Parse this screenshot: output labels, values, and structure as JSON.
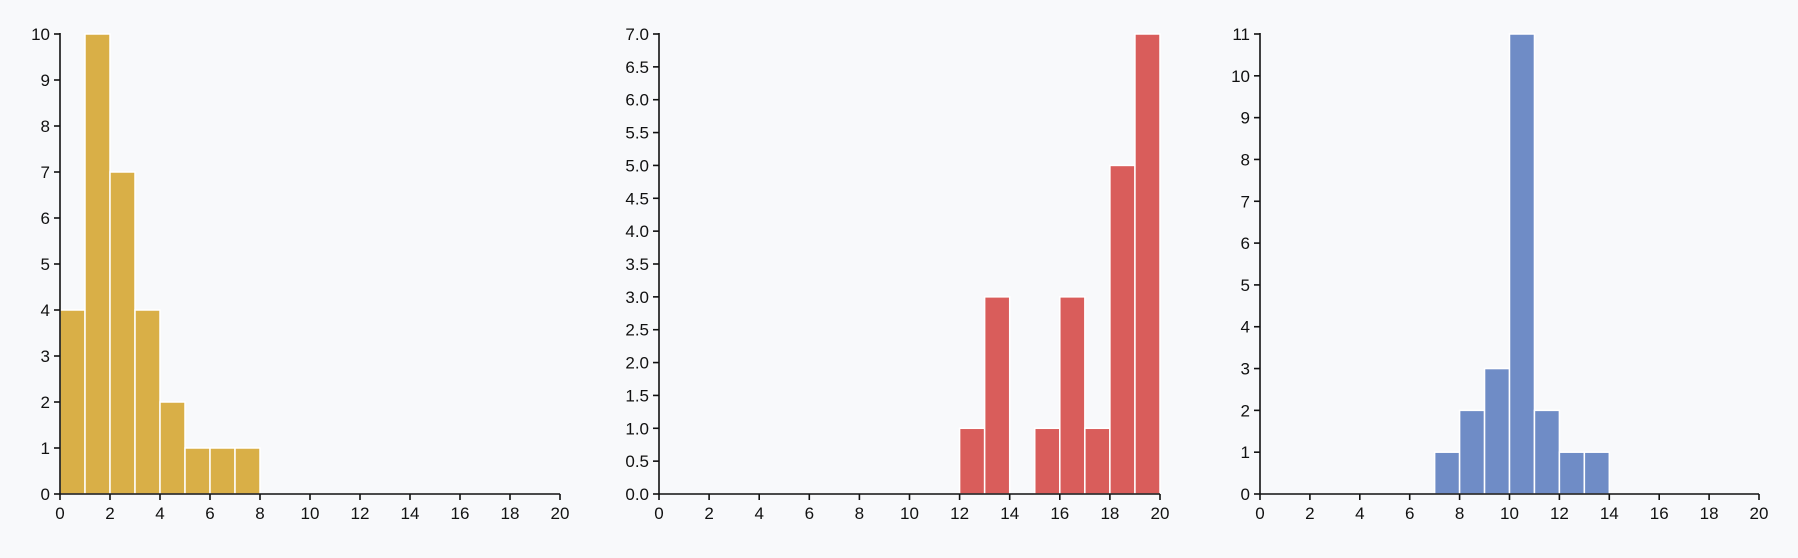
{
  "chart_data": [
    {
      "type": "bar",
      "name": "histogram-1",
      "color": "#d9af47",
      "bin_width": 1,
      "bin_starts": [
        0,
        1,
        2,
        3,
        4,
        5,
        6,
        7
      ],
      "values": [
        4,
        10,
        7,
        4,
        2,
        1,
        1,
        1
      ],
      "xlim": [
        0,
        20
      ],
      "ylim": [
        0,
        10
      ],
      "x_ticks": [
        0,
        2,
        4,
        6,
        8,
        10,
        12,
        14,
        16,
        18,
        20
      ],
      "y_ticks": [
        0,
        1,
        2,
        3,
        4,
        5,
        6,
        7,
        8,
        9,
        10
      ],
      "y_tick_decimals": 0,
      "title": "",
      "xlabel": "",
      "ylabel": ""
    },
    {
      "type": "bar",
      "name": "histogram-2",
      "color": "#d95d5b",
      "bin_width": 1,
      "bin_starts": [
        12,
        13,
        15,
        16,
        17,
        18,
        19
      ],
      "values": [
        1,
        3,
        1,
        3,
        1,
        5,
        7
      ],
      "xlim": [
        0,
        20
      ],
      "ylim": [
        0,
        7
      ],
      "x_ticks": [
        0,
        2,
        4,
        6,
        8,
        10,
        12,
        14,
        16,
        18,
        20
      ],
      "y_ticks": [
        0,
        0.5,
        1,
        1.5,
        2,
        2.5,
        3,
        3.5,
        4,
        4.5,
        5,
        5.5,
        6,
        6.5,
        7
      ],
      "y_tick_decimals": 1,
      "title": "",
      "xlabel": "",
      "ylabel": ""
    },
    {
      "type": "bar",
      "name": "histogram-3",
      "color": "#6f8cc6",
      "bin_width": 1,
      "bin_starts": [
        7,
        8,
        9,
        10,
        11,
        12,
        13
      ],
      "values": [
        1,
        2,
        3,
        11,
        2,
        1,
        1
      ],
      "xlim": [
        0,
        20
      ],
      "ylim": [
        0,
        11
      ],
      "x_ticks": [
        0,
        2,
        4,
        6,
        8,
        10,
        12,
        14,
        16,
        18,
        20
      ],
      "y_ticks": [
        0,
        1,
        2,
        3,
        4,
        5,
        6,
        7,
        8,
        9,
        10,
        11
      ],
      "y_tick_decimals": 0,
      "title": "",
      "xlabel": "",
      "ylabel": ""
    }
  ]
}
